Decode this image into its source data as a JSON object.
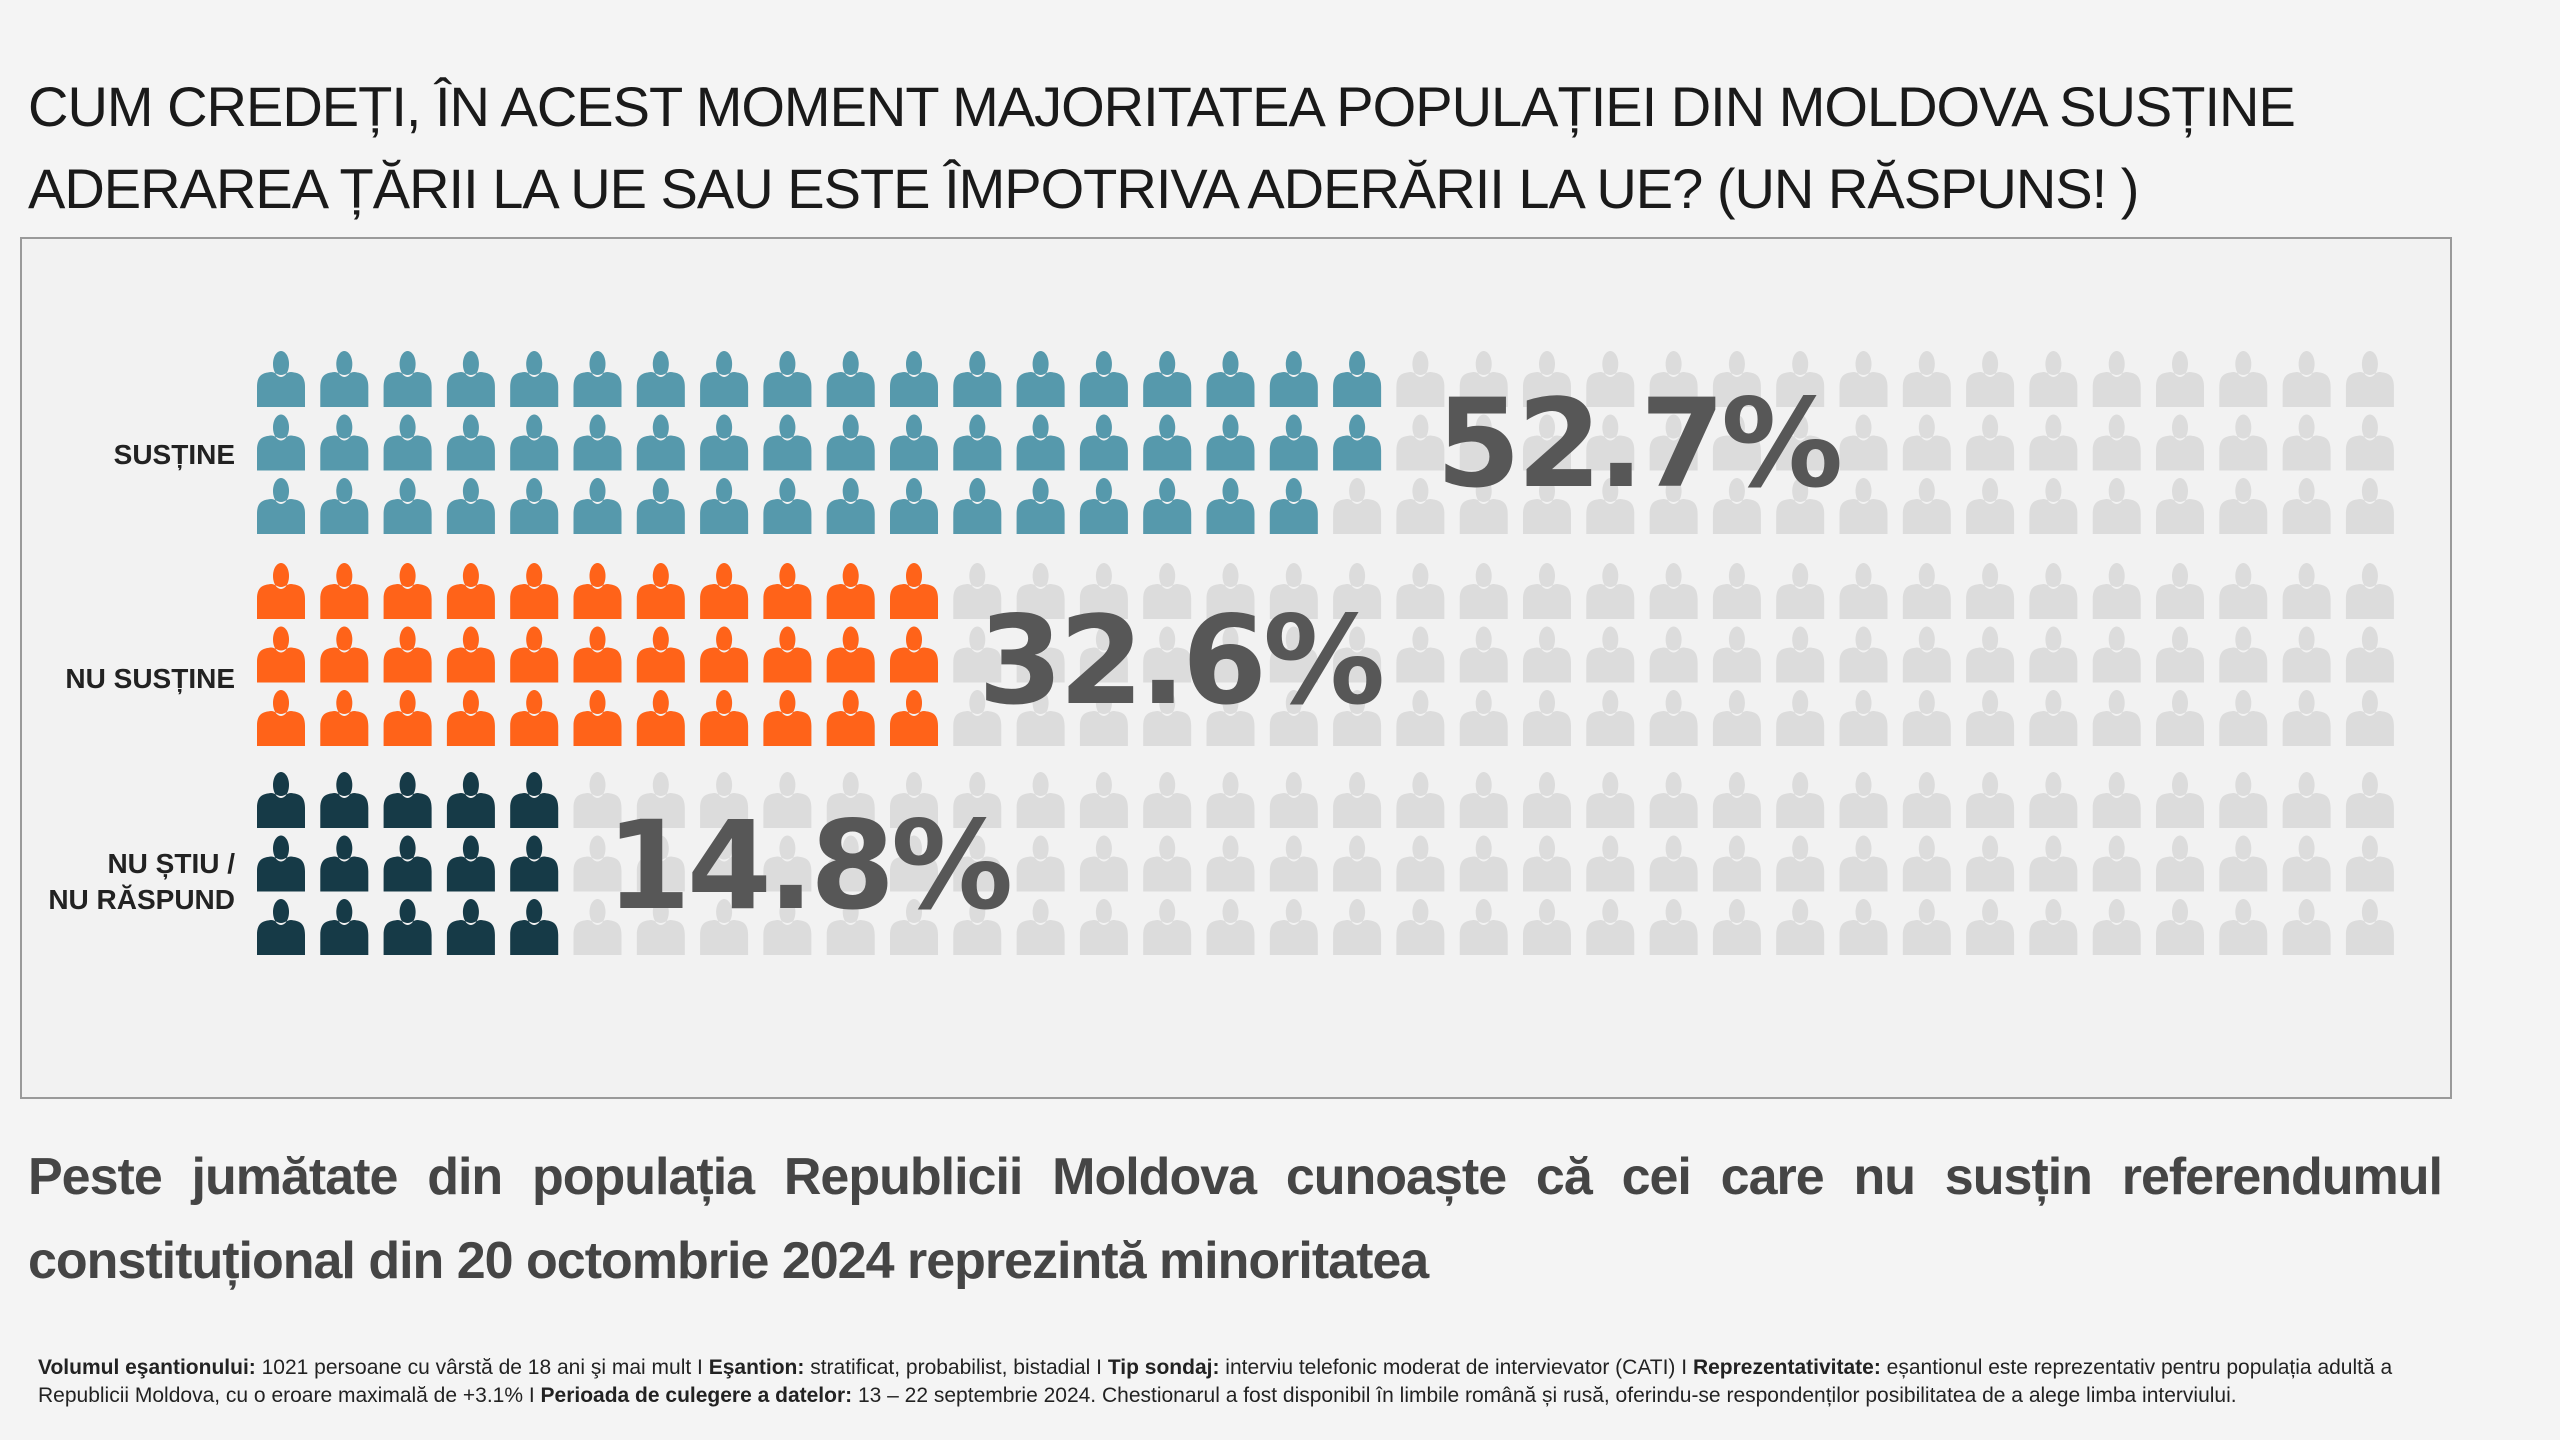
{
  "title": "CUM CREDEȚI, ÎN ACEST MOMENT MAJORITATEA POPULAȚIEI DIN MOLDOVA SUSȚINE ADERAREA ȚĂRII LA UE SAU ESTE ÎMPOTRIVA ADERĂRII LA UE? (UN RĂSPUNS! )",
  "chart_data": {
    "type": "pictogram",
    "icon": "person-icon",
    "icons_per_category": 102,
    "categories": [
      "SUSȚINE",
      "NU SUSȚINE",
      "NU ȘTIU / NU RĂSPUND"
    ],
    "values": [
      52.7,
      32.6,
      14.8
    ],
    "value_labels": [
      "52.7%",
      "32.6%",
      "14.8%"
    ],
    "colors": [
      "#5699ac",
      "#ff6319",
      "#163a47"
    ],
    "empty_color": "#dcdcdc"
  },
  "labels": {
    "cat1": "SUSȚINE",
    "cat2": "NU SUSȚINE",
    "cat3a": "NU ȘTIU /",
    "cat3b": "NU RĂSPUND"
  },
  "subtitle": "Peste jumătate din populația Republicii Moldova cunoaște că cei care nu susțin referendumul constituțional din 20 octombrie 2024 reprezintă minoritatea",
  "footer": {
    "k1": "Volumul eşantionului:",
    "v1": " 1021 persoane cu vârstă de 18 ani şi mai mult  I  ",
    "k2": "Eşantion:",
    "v2": " stratificat, probabilist, bistadial  I  ",
    "k3": "Tip sondaj:",
    "v3": " interviu telefonic moderat de intervievator (CATI)  I  ",
    "k4": "Reprezentativitate:",
    "v4": " eșantionul este reprezentativ pentru populația adultă a Republicii Moldova, cu o eroare maximală de +3.1%  I  ",
    "k5": "Perioada de culegere a datelor:",
    "v5": " 13 – 22 septembrie 2024. Chestionarul a fost disponibil în limbile română și rusă, oferindu-se respondenților posibilitatea de a alege limba interviului."
  }
}
